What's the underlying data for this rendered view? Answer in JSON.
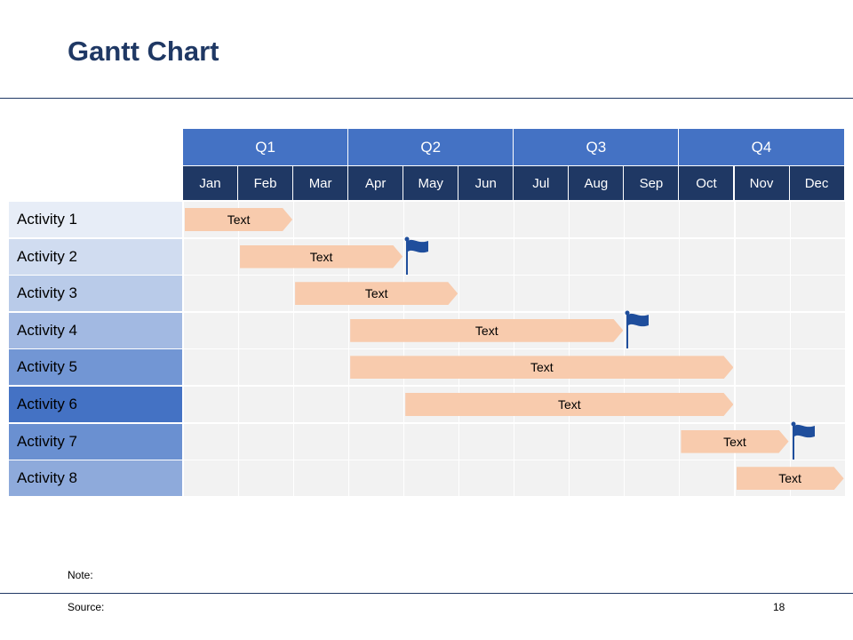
{
  "title": "Gantt Chart",
  "quarters": [
    "Q1",
    "Q2",
    "Q3",
    "Q4"
  ],
  "months": [
    "Jan",
    "Feb",
    "Mar",
    "Apr",
    "May",
    "Jun",
    "Jul",
    "Aug",
    "Sep",
    "Oct",
    "Nov",
    "Dec"
  ],
  "activities": [
    {
      "label": "Activity 1",
      "bar_text": "Text",
      "start_month": 1,
      "end_month": 2,
      "milestone": false,
      "label_bg": "#e7edf7",
      "label_color": "#000000"
    },
    {
      "label": "Activity 2",
      "bar_text": "Text",
      "start_month": 2,
      "end_month": 4,
      "milestone": true,
      "label_bg": "#d0dcf0",
      "label_color": "#000000"
    },
    {
      "label": "Activity 3",
      "bar_text": "Text",
      "start_month": 3,
      "end_month": 5,
      "milestone": false,
      "label_bg": "#b9cbe9",
      "label_color": "#000000"
    },
    {
      "label": "Activity 4",
      "bar_text": "Text",
      "start_month": 4,
      "end_month": 8,
      "milestone": true,
      "label_bg": "#a2b9e2",
      "label_color": "#000000"
    },
    {
      "label": "Activity 5",
      "bar_text": "Text",
      "start_month": 4,
      "end_month": 10,
      "milestone": false,
      "label_bg": "#7296d4",
      "label_color": "#000000"
    },
    {
      "label": "Activity 6",
      "bar_text": "Text",
      "start_month": 5,
      "end_month": 10,
      "milestone": false,
      "label_bg": "#4472c4",
      "label_color": "#000000"
    },
    {
      "label": "Activity 7",
      "bar_text": "Text",
      "start_month": 10,
      "end_month": 11,
      "milestone": true,
      "label_bg": "#6a90d1",
      "label_color": "#000000"
    },
    {
      "label": "Activity 8",
      "bar_text": "Text",
      "start_month": 11,
      "end_month": 12,
      "milestone": false,
      "label_bg": "#8eaadb",
      "label_color": "#000000"
    }
  ],
  "colors": {
    "title": "#1f3864",
    "quarter_header": "#4472c4",
    "month_header": "#1f3864",
    "bar": "#f8cbad",
    "flag": "#1f4e9c",
    "grid_cell": "#f2f2f2"
  },
  "footer": {
    "note": "Note:",
    "source": "Source:",
    "page_number": "18"
  }
}
